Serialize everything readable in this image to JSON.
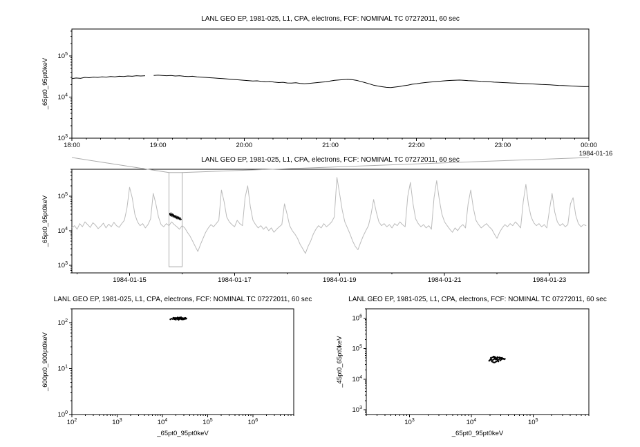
{
  "app": {
    "background": "#ffffff"
  },
  "chart_data": [
    {
      "type": "line",
      "title": "LANL GEO EP, 1981-025, L1, CPA, electrons, FCF: NOMINAL TC 07272011, 60 sec",
      "ylabel": "_65pt0_95pt0keV",
      "xlabel": null,
      "x_scale": "linear",
      "y_scale": "log",
      "xlim": [
        18,
        24
      ],
      "ylim": [
        1000,
        450000
      ],
      "x_ticks": {
        "values": [
          18,
          19,
          20,
          21,
          22,
          23,
          24
        ],
        "labels": [
          "18:00",
          "19:00",
          "20:00",
          "21:00",
          "22:00",
          "23:00",
          "00:00"
        ],
        "minor_step": 0.16667
      },
      "y_tick_exponents": [
        3,
        4,
        5
      ],
      "x_note": "1984-01-16",
      "grid": false,
      "series": [
        {
          "name": "electron-flux-65-95keV",
          "color": "#000000",
          "width": 1,
          "x_start": 18,
          "x_step": 0.05,
          "y": [
            28000,
            29000,
            28500,
            30000,
            29500,
            30500,
            30000,
            31000,
            30500,
            31500,
            31000,
            32000,
            31500,
            32500,
            32000,
            33000,
            32500,
            33000,
            null,
            33500,
            34000,
            33500,
            33000,
            33500,
            32500,
            33000,
            32000,
            31500,
            32000,
            31000,
            30500,
            30000,
            29500,
            29000,
            28500,
            28000,
            27500,
            27000,
            26500,
            26000,
            25500,
            25000,
            24500,
            24800,
            24000,
            23500,
            23800,
            23000,
            22500,
            22800,
            22000,
            21800,
            22200,
            21500,
            21000,
            21500,
            22000,
            22500,
            23000,
            23500,
            24500,
            25500,
            26000,
            26500,
            27000,
            26500,
            25500,
            24000,
            22500,
            21000,
            19500,
            18500,
            17800,
            17200,
            17000,
            17500,
            18000,
            18800,
            19500,
            20500,
            21000,
            21800,
            22500,
            23000,
            23500,
            24000,
            24500,
            25000,
            25300,
            25600,
            25800,
            25500,
            25000,
            24800,
            24500,
            24000,
            23800,
            23500,
            23000,
            22800,
            22500,
            22200,
            22000,
            21800,
            21500,
            21200,
            21000,
            20800,
            20500,
            20200,
            20000,
            19800,
            19500,
            19200,
            19000,
            18800,
            18500,
            18300,
            18100,
            17900,
            18000
          ]
        }
      ]
    },
    {
      "type": "line",
      "title": "LANL GEO EP, 1981-025, L1, CPA, electrons, FCF: NOMINAL TC 07272011, 60 sec",
      "ylabel": "_65pt0_95pt0keV",
      "xlabel": null,
      "x_scale": "linear",
      "y_scale": "log",
      "xlim": [
        13.9,
        23.75
      ],
      "ylim": [
        600,
        600000
      ],
      "x_ticks": {
        "values": [
          15,
          17,
          19,
          21,
          23
        ],
        "labels": [
          "1984-01-15",
          "1984-01-17",
          "1984-01-19",
          "1984-01-21",
          "1984-01-23"
        ],
        "minor_step": 1
      },
      "y_tick_exponents": [
        3,
        4,
        5
      ],
      "zoom_box": {
        "x0": 15.75,
        "x1": 16.0,
        "y0": 900,
        "y1": 480000,
        "color": "#aaaaaa",
        "link_from": 0
      },
      "series": [
        {
          "name": "context-flux-65-95keV",
          "color": "#bbbbbb",
          "width": 1,
          "x_start": 13.9,
          "x_step": 0.05,
          "y": [
            12000,
            14000,
            11000,
            16000,
            13000,
            18000,
            15000,
            12500,
            17000,
            14500,
            11500,
            13500,
            16500,
            12000,
            15500,
            13000,
            17500,
            14000,
            12500,
            16000,
            20000,
            45000,
            180000,
            90000,
            30000,
            18000,
            14000,
            16000,
            12000,
            15000,
            22000,
            120000,
            60000,
            25000,
            15000,
            13000,
            16000,
            14000,
            18000,
            15000,
            13000,
            11000,
            14000,
            12000,
            9000,
            7000,
            5000,
            3500,
            2500,
            4000,
            6000,
            9000,
            12000,
            15000,
            13000,
            16000,
            20000,
            150000,
            70000,
            25000,
            18000,
            15000,
            13000,
            20000,
            16000,
            14000,
            90000,
            200000,
            50000,
            20000,
            15000,
            12000,
            14000,
            11000,
            13000,
            10000,
            12000,
            9000,
            11000,
            13000,
            15000,
            60000,
            30000,
            14000,
            10000,
            8000,
            6000,
            4000,
            3000,
            2200,
            3500,
            5000,
            8000,
            11000,
            14000,
            12000,
            16000,
            13000,
            15000,
            18000,
            25000,
            350000,
            120000,
            40000,
            18000,
            12000,
            8000,
            5000,
            3500,
            2800,
            4500,
            7000,
            10000,
            14000,
            30000,
            80000,
            35000,
            18000,
            14000,
            16000,
            13000,
            15000,
            12000,
            16000,
            14000,
            18000,
            15000,
            13000,
            100000,
            250000,
            60000,
            22000,
            16000,
            13000,
            15000,
            12000,
            14000,
            11000,
            90000,
            280000,
            80000,
            30000,
            18000,
            14000,
            11000,
            9000,
            12000,
            10000,
            13000,
            15000,
            12000,
            60000,
            150000,
            45000,
            20000,
            15000,
            12000,
            14000,
            16000,
            13000,
            11000,
            8000,
            6000,
            9000,
            12000,
            15000,
            13000,
            16000,
            14000,
            18000,
            15000,
            12000,
            70000,
            220000,
            55000,
            25000,
            17000,
            14000,
            16000,
            13000,
            15000,
            12000,
            40000,
            120000,
            35000,
            18000,
            14000,
            16000,
            13000,
            15000,
            60000,
            90000,
            28000,
            16000,
            13000,
            15000,
            14000
          ]
        },
        {
          "name": "highlighted-interval-flux",
          "color": "#000000",
          "width": 1.2,
          "x_start": 15.75,
          "x_step": 0.0125,
          "y": [
            29000,
            32000,
            27000,
            33000,
            26000,
            31000,
            25000,
            30000,
            24000,
            28000,
            23000,
            27000,
            22000,
            26000,
            21500,
            25000,
            21000,
            24000,
            20500,
            22000
          ]
        }
      ]
    },
    {
      "type": "scatter",
      "title": "LANL GEO EP, 1981-025, L1, CPA, electrons, FCF: NOMINAL TC 07272011, 60 sec",
      "ylabel": "_600pt0_900pt0keV",
      "xlabel": "_65pt0_95pt0keV",
      "x_scale": "log",
      "y_scale": "log",
      "xlim": [
        100,
        8000000
      ],
      "ylim": [
        1,
        200
      ],
      "x_tick_exponents": [
        2,
        3,
        4,
        5,
        6
      ],
      "y_tick_exponents": [
        0,
        1,
        2
      ],
      "series": [
        {
          "name": "scatter-600-900-vs-65-95",
          "color": "#000000",
          "marker": "dot",
          "x": [
            15000,
            16000,
            17000,
            18000,
            18500,
            19000,
            19500,
            20000,
            20500,
            21000,
            21500,
            22000,
            22500,
            23000,
            23500,
            24000,
            24500,
            25000,
            25500,
            26000,
            27000,
            28000,
            29000,
            30000,
            31000,
            32000,
            33000,
            34000,
            26500,
            21800,
            19800,
            23800,
            28500,
            17500,
            30500,
            25800,
            22800,
            20200,
            24200,
            18800
          ],
          "y": [
            118,
            122,
            120,
            125,
            119,
            127,
            123,
            121,
            126,
            124,
            120,
            128,
            122,
            125,
            119,
            126,
            123,
            121,
            127,
            124,
            122,
            126,
            120,
            125,
            123,
            127,
            121,
            124,
            118,
            130,
            116,
            129,
            117,
            128,
            119,
            131,
            115,
            124,
            127,
            121
          ]
        }
      ]
    },
    {
      "type": "scatter",
      "title": "LANL GEO EP, 1981-025, L1, CPA, electrons, FCF: NOMINAL TC 07272011, 60 sec",
      "ylabel": "_45pt0_65pt0keV",
      "xlabel": "_65pt0_95pt0keV",
      "x_scale": "log",
      "y_scale": "log",
      "xlim": [
        200,
        800000
      ],
      "ylim": [
        700,
        2000000
      ],
      "x_tick_exponents": [
        3,
        4,
        5
      ],
      "y_tick_exponents": [
        3,
        4,
        5,
        6
      ],
      "series": [
        {
          "name": "scatter-45-65-vs-65-95",
          "color": "#000000",
          "marker": "dot",
          "x": [
            20000,
            21000,
            22000,
            23000,
            24000,
            25000,
            26000,
            27000,
            28000,
            29000,
            30000,
            31000,
            32000,
            21500,
            22500,
            23500,
            24500,
            25500,
            26500,
            20500,
            33000,
            34000,
            23000,
            24000,
            25000,
            26000,
            27000,
            22000,
            28500,
            30500,
            19500,
            21000,
            35000,
            24500,
            26500,
            23500,
            29500,
            31500,
            20800,
            27500
          ],
          "y": [
            42000,
            48000,
            52000,
            55000,
            54000,
            50000,
            45000,
            42000,
            44000,
            47000,
            50000,
            48000,
            46000,
            38000,
            36000,
            35000,
            36000,
            38000,
            40000,
            45000,
            47000,
            45000,
            44000,
            46000,
            44000,
            48000,
            50000,
            42000,
            52000,
            44000,
            40000,
            43000,
            46000,
            49000,
            53000,
            51000,
            41000,
            50000,
            50000,
            38000
          ]
        }
      ]
    }
  ]
}
